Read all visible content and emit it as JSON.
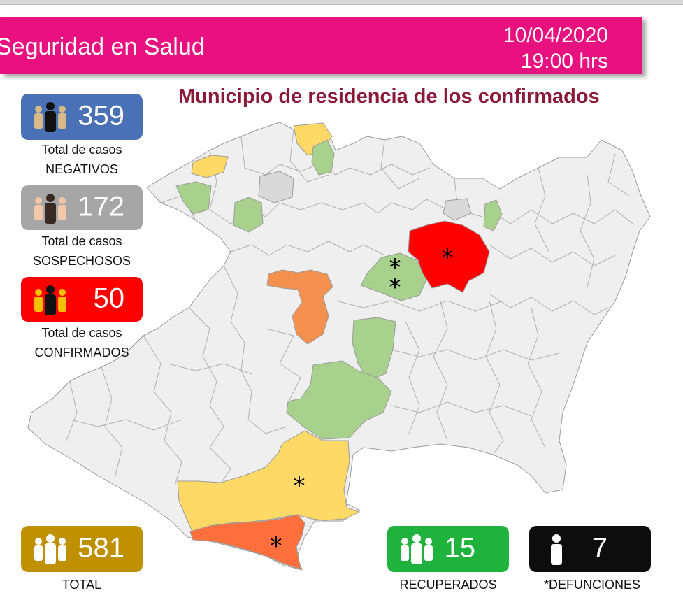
{
  "header": {
    "title": "Seguridad en Salud",
    "date": "10/04/2020",
    "time": "19:00 hrs"
  },
  "map": {
    "title": "Municipio de residencia de los confirmados",
    "marker_symbol": "*",
    "legend_colors": {
      "no_cases": "#efefef",
      "gray": "#d9d9d9",
      "green": "#a9d18e",
      "yellow": "#ffd966",
      "orange": "#f4914e",
      "orange_red": "#ff6f3c",
      "red": "#ff0000"
    }
  },
  "stats": {
    "negativos": {
      "value": "359",
      "caption_line1": "Total de casos",
      "caption_line2": "NEGATIVOS",
      "color": "#4a71b5"
    },
    "sospechosos": {
      "value": "172",
      "caption_line1": "Total de casos",
      "caption_line2": "SOSPECHOSOS",
      "color": "#a6a6a6"
    },
    "confirmados": {
      "value": "50",
      "caption_line1": "Total de casos",
      "caption_line2": "CONFIRMADOS",
      "color": "#ff0000"
    },
    "total": {
      "value": "581",
      "caption": "TOTAL",
      "color": "#bf9000"
    },
    "recuperados": {
      "value": "15",
      "caption": "RECUPERADOS",
      "color": "#1fb23c"
    },
    "defunciones": {
      "value": "7",
      "caption": "*DEFUNCIONES",
      "color": "#0d0d0d"
    }
  },
  "icons": {
    "people_group": "people-group-icon",
    "person": "person-icon"
  }
}
